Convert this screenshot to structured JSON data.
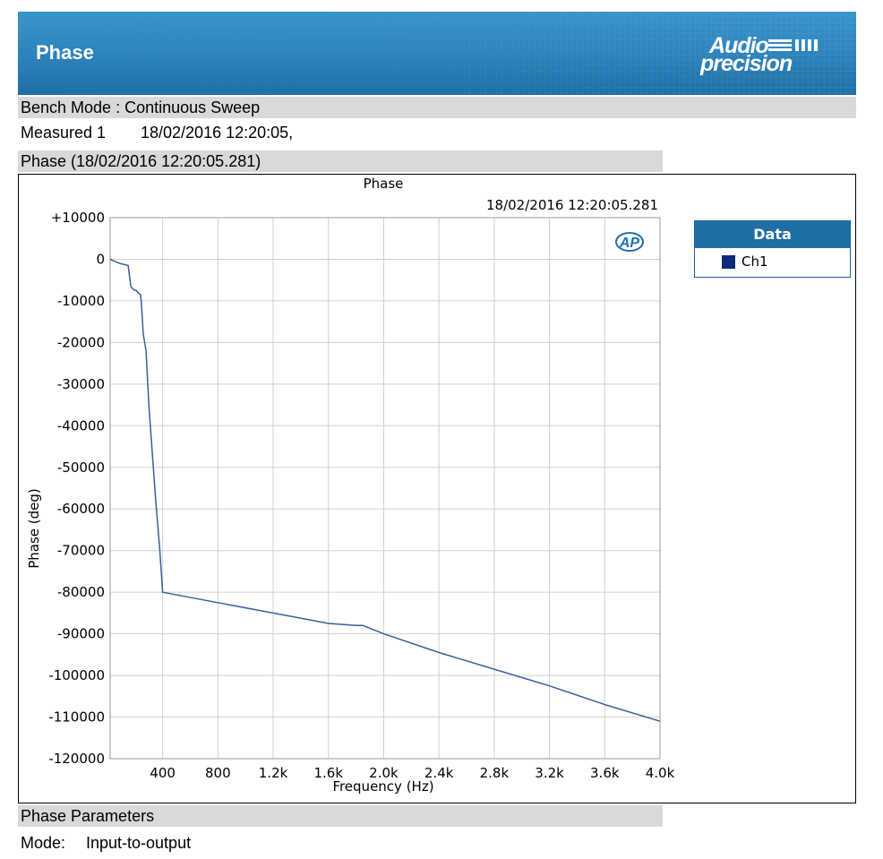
{
  "header": {
    "title": "Phase",
    "logo_line1": "Audio",
    "logo_line2": "precision"
  },
  "bench_mode": "Bench Mode : Continuous Sweep",
  "measured": {
    "label": "Measured 1",
    "timestamp": "18/02/2016 12:20:05,"
  },
  "chart_section_title": "Phase (18/02/2016 12:20:05.281)",
  "legend": {
    "title": "Data",
    "items": [
      {
        "label": "Ch1",
        "color": "#0d2a7a"
      }
    ]
  },
  "parameters": {
    "title": "Phase Parameters",
    "mode_label": "Mode:",
    "mode_value": "Input-to-output"
  },
  "colors": {
    "banner": "#2f86be",
    "band_gray": "#d9d9d9",
    "line": "#3a5f9a",
    "legend_header": "#1f6fa6"
  },
  "chart_data": {
    "type": "line",
    "title": "Phase",
    "subtitle": "18/02/2016 12:20:05.281",
    "xlabel": "Frequency (Hz)",
    "ylabel": "Phase (deg)",
    "xlim": [
      20,
      4000
    ],
    "ylim": [
      -120000,
      10000
    ],
    "x_ticks": [
      400,
      800,
      1200,
      1600,
      2000,
      2400,
      2800,
      3200,
      3600,
      4000
    ],
    "x_tick_labels": [
      "400",
      "800",
      "1.2k",
      "1.6k",
      "2.0k",
      "2.4k",
      "2.8k",
      "3.2k",
      "3.6k",
      "4.0k"
    ],
    "y_ticks": [
      10000,
      0,
      -10000,
      -20000,
      -30000,
      -40000,
      -50000,
      -60000,
      -70000,
      -80000,
      -90000,
      -100000,
      -110000,
      -120000
    ],
    "y_tick_labels": [
      "+10000",
      "0",
      "-10000",
      "-20000",
      "-30000",
      "-40000",
      "-50000",
      "-60000",
      "-70000",
      "-80000",
      "-90000",
      "-100000",
      "-110000",
      "-120000"
    ],
    "grid": true,
    "legend_position": "right-outside",
    "series": [
      {
        "name": "Ch1",
        "color": "#3a5f9a",
        "x": [
          20,
          90,
          150,
          160,
          170,
          180,
          200,
          210,
          220,
          240,
          245,
          260,
          280,
          300,
          350,
          380,
          400,
          800,
          1200,
          1600,
          1800,
          1850,
          2000,
          2400,
          2800,
          3200,
          3600,
          4000
        ],
        "y": [
          0,
          -1000,
          -1500,
          -4000,
          -6500,
          -7000,
          -7500,
          -7500,
          -8000,
          -8500,
          -10000,
          -18000,
          -22000,
          -35000,
          -58000,
          -70000,
          -80000,
          -82500,
          -85000,
          -87500,
          -88000,
          -88000,
          -90000,
          -94500,
          -98500,
          -102500,
          -107000,
          -111000
        ]
      }
    ]
  }
}
